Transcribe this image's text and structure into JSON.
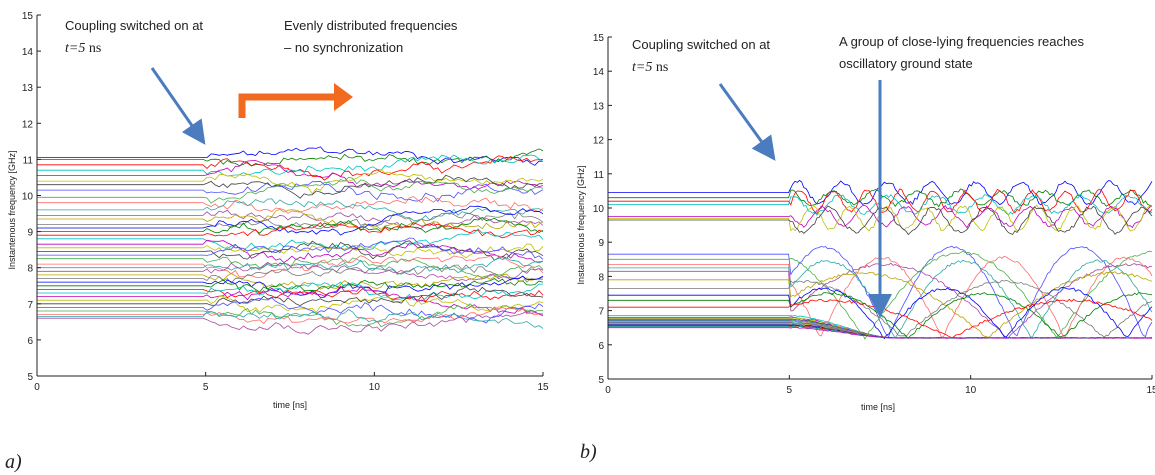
{
  "colors": {
    "arrow_blue": "#4a7cbf",
    "arrow_orange": "#f26a1f",
    "palette": [
      "#0000ff",
      "#008000",
      "#ff0000",
      "#00bfbf",
      "#bf00bf",
      "#bfbf00",
      "#404040",
      "#4d4dff",
      "#4cae4c",
      "#ff6b6b",
      "#2fa8a8",
      "#a54aa5",
      "#b8a400",
      "#7a7a7a"
    ]
  },
  "panels": [
    {
      "panel_label": "a)",
      "annotation_1_line1": "Coupling switched on at",
      "annotation_1_var": "t=5",
      "annotation_1_unit": " ns",
      "annotation_2_line1": "Evenly distributed frequencies",
      "annotation_2_line2": "– no synchronization",
      "arrow_1_icon": "blue-down-right-arrow-icon",
      "arrow_2_icon": "orange-right-arrow-icon"
    },
    {
      "panel_label": "b)",
      "annotation_1_line1": "Coupling switched on at",
      "annotation_1_var": "t=5",
      "annotation_1_unit": " ns",
      "annotation_2_line1": "A group of close-lying frequencies reaches",
      "annotation_2_line2": "oscillatory ground state",
      "arrow_1_icon": "blue-down-right-arrow-icon",
      "arrow_2_icon": "blue-down-arrow-icon"
    }
  ],
  "chart_data": [
    {
      "type": "line",
      "xlabel": "time [ns]",
      "ylabel": "Instantenous frequency [GHz]",
      "xlim": [
        0,
        15
      ],
      "ylim": [
        5,
        15
      ],
      "xticks": [
        "0",
        "5",
        "10",
        "15"
      ],
      "yticks": [
        "5",
        "6",
        "7",
        "8",
        "9",
        "10",
        "11",
        "12",
        "13",
        "14",
        "15"
      ],
      "grid": false,
      "coupling_on_time": 5,
      "behavior": "spread (no synchronization)",
      "initial_frequencies": [
        11.05,
        11.0,
        10.85,
        10.7,
        10.55,
        10.4,
        10.3,
        10.15,
        9.95,
        9.8,
        9.6,
        9.45,
        9.35,
        9.2,
        9.1,
        9.0,
        8.9,
        8.8,
        8.65,
        8.55,
        8.45,
        8.35,
        8.25,
        8.1,
        8.0,
        7.9,
        7.8,
        7.7,
        7.6,
        7.5,
        7.4,
        7.3,
        7.2,
        7.1,
        7.0,
        6.9,
        6.8,
        6.7,
        6.65,
        6.6
      ]
    },
    {
      "type": "line",
      "xlabel": "time [ns]",
      "ylabel": "Instantenous frequency [GHz]",
      "xlim": [
        0,
        15
      ],
      "ylim": [
        5,
        15
      ],
      "xticks": [
        "0",
        "5",
        "10",
        "15"
      ],
      "yticks": [
        "5",
        "6",
        "7",
        "8",
        "9",
        "10",
        "11",
        "12",
        "13",
        "14",
        "15"
      ],
      "grid": false,
      "coupling_on_time": 5,
      "behavior": "low group synchronizes to ~6.2 GHz after ~8 ns",
      "sync_frequency": 6.2,
      "initial_frequencies": [
        10.45,
        10.3,
        10.2,
        10.1,
        9.75,
        9.7,
        9.65,
        8.65,
        8.5,
        8.35,
        8.25,
        8.15,
        7.9,
        7.65,
        7.45,
        7.3,
        7.1,
        6.85,
        6.8,
        6.78,
        6.75,
        6.72,
        6.7,
        6.68,
        6.66,
        6.64,
        6.62,
        6.6,
        6.58,
        6.56,
        6.55,
        6.53,
        6.5
      ]
    }
  ]
}
